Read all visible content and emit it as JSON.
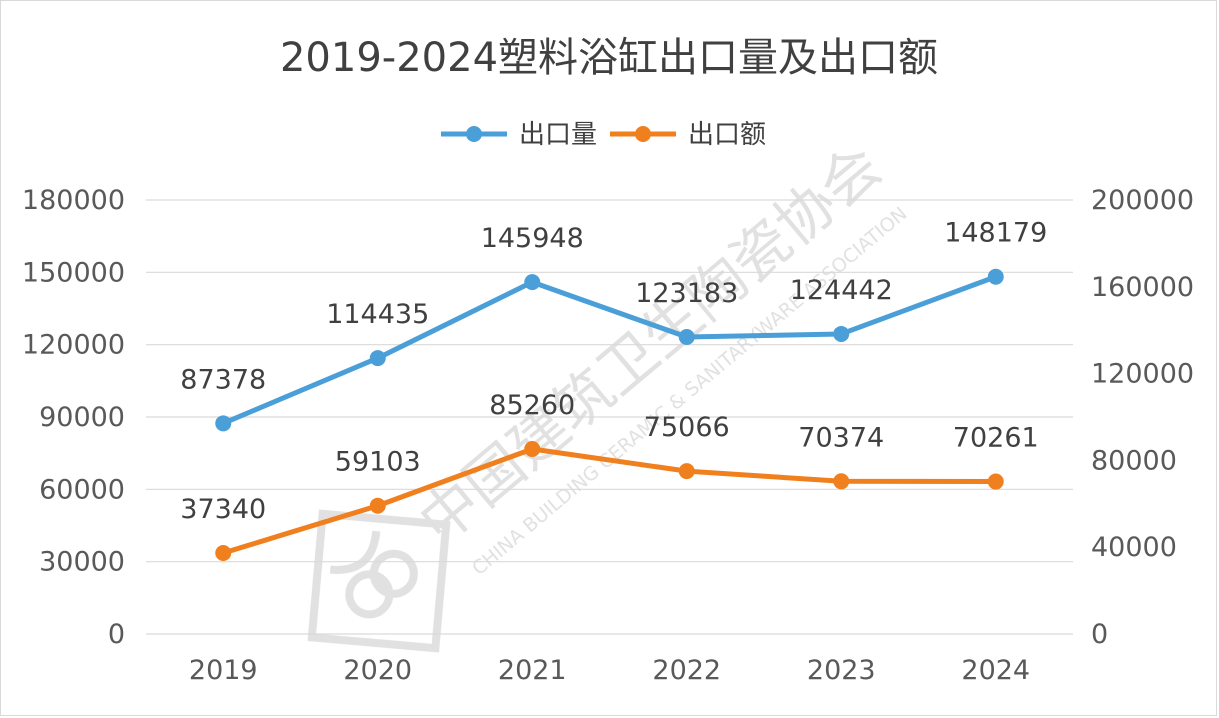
{
  "chart_data": {
    "type": "line",
    "title": "2019-2024塑料浴缸出口量及出口额",
    "categories": [
      "2019",
      "2020",
      "2021",
      "2022",
      "2023",
      "2024"
    ],
    "series": [
      {
        "name": "出口量",
        "axis": "left",
        "color": "#4a9fd8",
        "values": [
          87378,
          114435,
          145948,
          123183,
          124442,
          148179
        ]
      },
      {
        "name": "出口额",
        "axis": "right",
        "color": "#f07f1e",
        "values": [
          37340,
          59103,
          85260,
          75066,
          70374,
          70261
        ]
      }
    ],
    "y_left": {
      "min": 0,
      "max": 180000,
      "ticks": [
        "0",
        "30000",
        "60000",
        "90000",
        "120000",
        "150000",
        "180000"
      ]
    },
    "y_right": {
      "min": 0,
      "max": 200000,
      "ticks": [
        "0",
        "40000",
        "80000",
        "120000",
        "160000",
        "200000"
      ]
    },
    "legend": "top-center",
    "grid": true
  },
  "watermark": {
    "cn": "中国建筑卫生陶瓷协会",
    "en": "CHINA BUILDING CERAMIC & SANITARYWARE ASSOCIATION"
  }
}
